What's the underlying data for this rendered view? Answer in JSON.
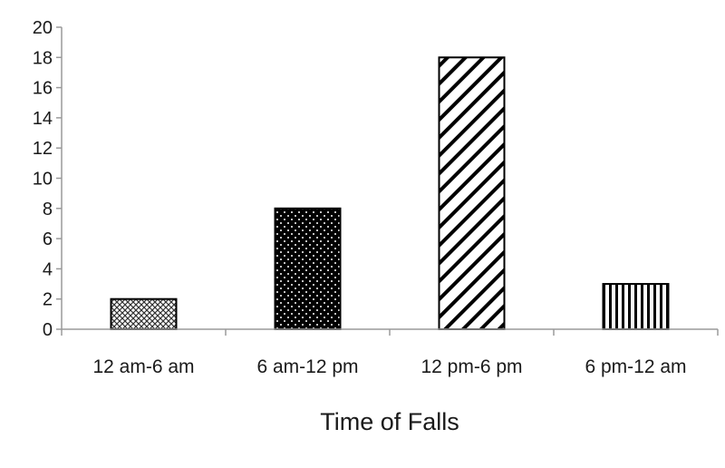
{
  "chart_data": {
    "type": "bar",
    "categories": [
      "12 am-6 am",
      "6 am-12 pm",
      "12 pm-6 pm",
      "6 pm-12 am"
    ],
    "values": [
      2,
      8,
      18,
      3
    ],
    "bar_patterns": [
      "crosshatch",
      "dots",
      "diagonal-stripes",
      "vertical-stripes"
    ],
    "title": "",
    "xlabel": "Time of Falls",
    "ylabel": "",
    "ylim": [
      0,
      20
    ],
    "yticks": [
      0,
      2,
      4,
      6,
      8,
      10,
      12,
      14,
      16,
      18,
      20
    ],
    "grid": false,
    "legend": "none",
    "colors": {
      "bar_stroke": "#000000",
      "axis": "#9a9a9a",
      "text": "#1a1a1a",
      "background": "#ffffff"
    }
  }
}
